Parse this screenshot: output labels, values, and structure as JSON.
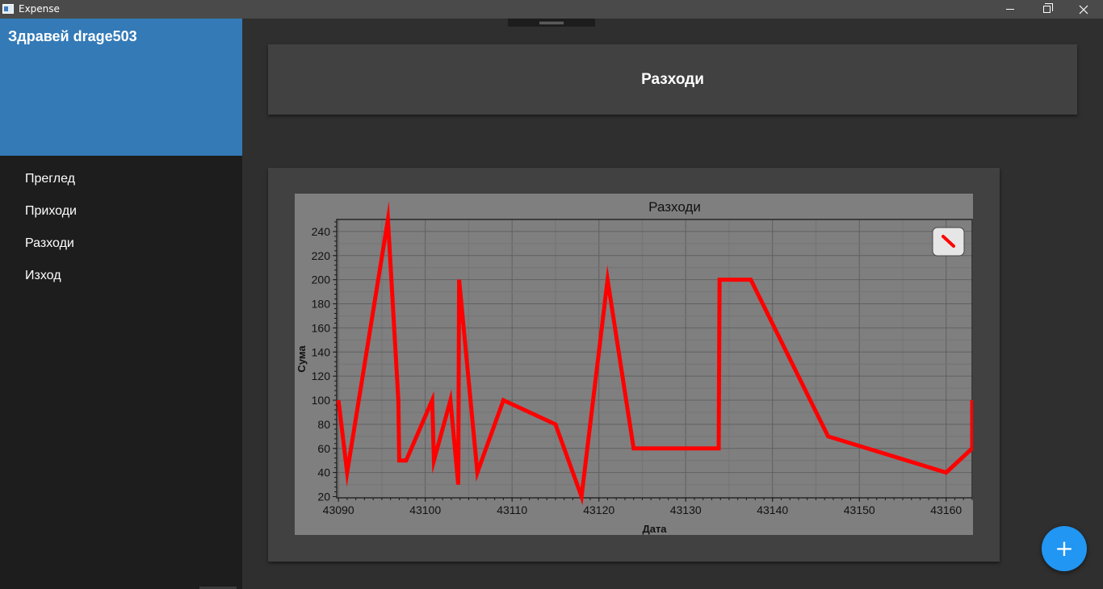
{
  "window": {
    "title": "Expense",
    "icons": [
      "app-icon",
      "minimize-icon",
      "maximize-icon",
      "close-icon"
    ]
  },
  "sidebar": {
    "greeting": "Здравей drage503",
    "items": [
      {
        "label": "Преглед"
      },
      {
        "label": "Приходи"
      },
      {
        "label": "Разходи"
      },
      {
        "label": "Изход"
      }
    ]
  },
  "main": {
    "page_title": "Разходи"
  },
  "fab": {
    "icon": "plus-icon",
    "label": "+"
  },
  "colors": {
    "accent": "#337ab7",
    "fab": "#2196f3",
    "series": "#ff0000",
    "plot_bg": "#7f7f7f"
  },
  "chart_data": {
    "type": "line",
    "title": "Разходи",
    "xlabel": "Дата",
    "ylabel": "Сума",
    "xlim": [
      43089.8,
      43163
    ],
    "ylim": [
      19,
      250
    ],
    "xticks": [
      43090,
      43100,
      43110,
      43120,
      43130,
      43140,
      43150,
      43160
    ],
    "yticks": [
      20,
      40,
      60,
      80,
      100,
      120,
      140,
      160,
      180,
      200,
      220,
      240
    ],
    "grid": true,
    "legend": "none",
    "series": [
      {
        "color": "#ff0000",
        "x": [
          43090,
          43091,
          43095.7,
          43096.9,
          43097,
          43097.8,
          43100.8,
          43101,
          43102.9,
          43103.8,
          43103.9,
          43106,
          43109,
          43115,
          43118,
          43121,
          43124,
          43127,
          43133.8,
          43133.9,
          43137.5,
          43146.4,
          43160,
          43163,
          43163
        ],
        "y": [
          100,
          40,
          250,
          100,
          50,
          50,
          100,
          50,
          100,
          30,
          200,
          40,
          100,
          80,
          20,
          200,
          60,
          60,
          60,
          200,
          200,
          70,
          40,
          60,
          100
        ]
      }
    ]
  }
}
